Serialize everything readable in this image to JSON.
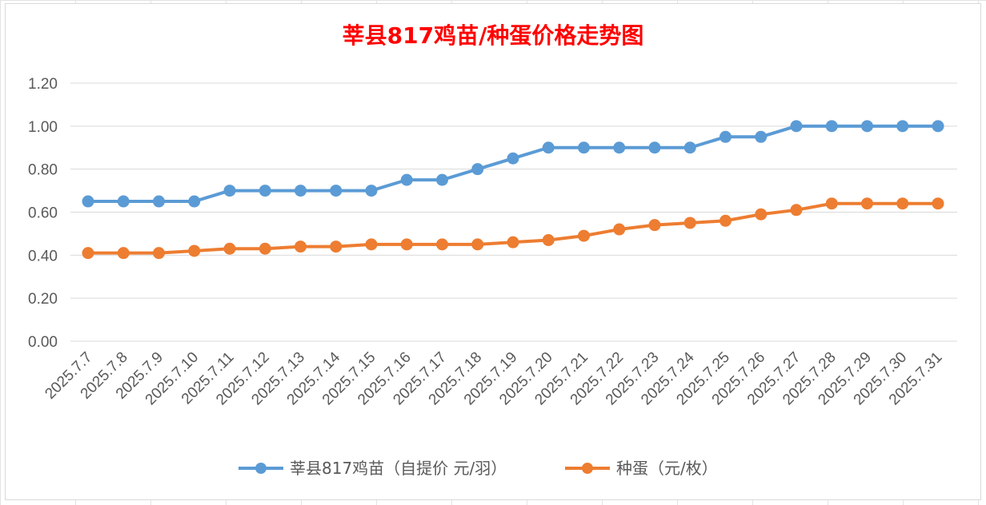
{
  "chart_data": {
    "type": "line",
    "title": "莘县817鸡苗/种蛋价格走势图",
    "xlabel": "",
    "ylabel": "",
    "ylim": [
      0,
      1.2
    ],
    "ytick_labels": [
      "0.00",
      "0.20",
      "0.40",
      "0.60",
      "0.80",
      "1.00",
      "1.20"
    ],
    "y_ticks": [
      0,
      0.2,
      0.4,
      0.6,
      0.8,
      1.0,
      1.2
    ],
    "categories": [
      "2025.7.7",
      "2025.7.8",
      "2025.7.9",
      "2025.7.10",
      "2025.7.11",
      "2025.7.12",
      "2025.7.13",
      "2025.7.14",
      "2025.7.15",
      "2025.7.16",
      "2025.7.17",
      "2025.7.18",
      "2025.7.19",
      "2025.7.20",
      "2025.7.21",
      "2025.7.22",
      "2025.7.23",
      "2025.7.24",
      "2025.7.25",
      "2025.7.26",
      "2025.7.27",
      "2025.7.28",
      "2025.7.29",
      "2025.7.30",
      "2025.7.31"
    ],
    "series": [
      {
        "name": "莘县817鸡苗（自提价 元/羽）",
        "color": "#5b9bd5",
        "values": [
          0.65,
          0.65,
          0.65,
          0.65,
          0.7,
          0.7,
          0.7,
          0.7,
          0.7,
          0.75,
          0.75,
          0.8,
          0.85,
          0.9,
          0.9,
          0.9,
          0.9,
          0.9,
          0.95,
          0.95,
          1.0,
          1.0,
          1.0,
          1.0,
          1.0
        ]
      },
      {
        "name": "种蛋（元/枚）",
        "color": "#ed7d31",
        "values": [
          0.41,
          0.41,
          0.41,
          0.42,
          0.43,
          0.43,
          0.44,
          0.44,
          0.45,
          0.45,
          0.45,
          0.45,
          0.46,
          0.47,
          0.49,
          0.52,
          0.54,
          0.55,
          0.56,
          0.59,
          0.61,
          0.64,
          0.64,
          0.64,
          0.64
        ]
      }
    ],
    "grid": true,
    "legend_position": "bottom"
  }
}
